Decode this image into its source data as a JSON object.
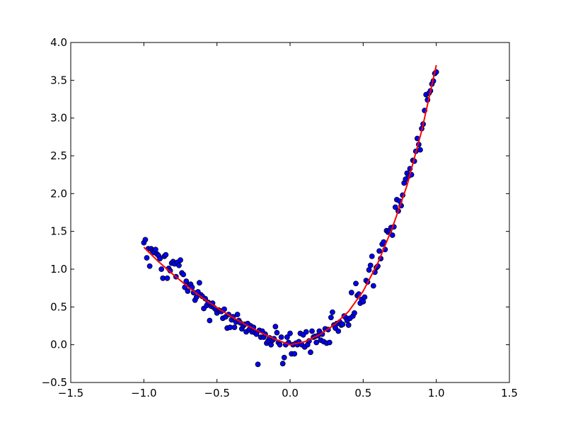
{
  "chart_data": {
    "type": "scatter",
    "title": "",
    "xlabel": "",
    "ylabel": "",
    "xlim": [
      -1.5,
      1.5
    ],
    "ylim": [
      -0.5,
      4.0
    ],
    "x_ticks": [
      -1.5,
      -1.0,
      -0.5,
      0.0,
      0.5,
      1.0,
      1.5
    ],
    "x_tick_labels": [
      "−1.5",
      "−1.0",
      "−0.5",
      "0.0",
      "0.5",
      "1.0",
      "1.5"
    ],
    "y_ticks": [
      -0.5,
      0.0,
      0.5,
      1.0,
      1.5,
      2.0,
      2.5,
      3.0,
      3.5,
      4.0
    ],
    "y_tick_labels": [
      "−0.5",
      "0.0",
      "0.5",
      "1.0",
      "1.5",
      "2.0",
      "2.5",
      "3.0",
      "3.5",
      "4.0"
    ],
    "grid": false,
    "legend": false,
    "series": [
      {
        "kind": "scatter",
        "marker": "circle",
        "color": "#0000ff",
        "edgecolor": "#000000",
        "points": [
          [
            -1.0,
            1.35
          ],
          [
            -0.99,
            1.39
          ],
          [
            -0.98,
            1.15
          ],
          [
            -0.97,
            1.27
          ],
          [
            -0.96,
            1.04
          ],
          [
            -0.95,
            1.27
          ],
          [
            -0.94,
            1.24
          ],
          [
            -0.93,
            1.22
          ],
          [
            -0.92,
            1.26
          ],
          [
            -0.91,
            1.2
          ],
          [
            -0.9,
            1.18
          ],
          [
            -0.89,
            1.14
          ],
          [
            -0.88,
            1.0
          ],
          [
            -0.87,
            0.88
          ],
          [
            -0.86,
            1.17
          ],
          [
            -0.85,
            1.19
          ],
          [
            -0.84,
            0.88
          ],
          [
            -0.83,
            1.01
          ],
          [
            -0.82,
            0.98
          ],
          [
            -0.81,
            1.08
          ],
          [
            -0.8,
            1.1
          ],
          [
            -0.79,
            1.07
          ],
          [
            -0.78,
            0.9
          ],
          [
            -0.77,
            1.09
          ],
          [
            -0.76,
            1.05
          ],
          [
            -0.75,
            1.12
          ],
          [
            -0.74,
            0.95
          ],
          [
            -0.73,
            0.93
          ],
          [
            -0.72,
            0.76
          ],
          [
            -0.71,
            0.84
          ],
          [
            -0.7,
            0.71
          ],
          [
            -0.69,
            0.79
          ],
          [
            -0.68,
            0.8
          ],
          [
            -0.67,
            0.76
          ],
          [
            -0.66,
            0.69
          ],
          [
            -0.65,
            0.59
          ],
          [
            -0.64,
            0.63
          ],
          [
            -0.63,
            0.7
          ],
          [
            -0.62,
            0.82
          ],
          [
            -0.61,
            0.66
          ],
          [
            -0.6,
            0.64
          ],
          [
            -0.59,
            0.48
          ],
          [
            -0.58,
            0.61
          ],
          [
            -0.57,
            0.52
          ],
          [
            -0.56,
            0.56
          ],
          [
            -0.55,
            0.32
          ],
          [
            -0.54,
            0.51
          ],
          [
            -0.53,
            0.55
          ],
          [
            -0.52,
            0.49
          ],
          [
            -0.51,
            0.47
          ],
          [
            -0.5,
            0.42
          ],
          [
            -0.49,
            0.46
          ],
          [
            -0.48,
            0.45
          ],
          [
            -0.47,
            0.44
          ],
          [
            -0.46,
            0.35
          ],
          [
            -0.45,
            0.47
          ],
          [
            -0.44,
            0.37
          ],
          [
            -0.43,
            0.22
          ],
          [
            -0.42,
            0.4
          ],
          [
            -0.41,
            0.23
          ],
          [
            -0.4,
            0.33
          ],
          [
            -0.39,
            0.37
          ],
          [
            -0.38,
            0.23
          ],
          [
            -0.37,
            0.3
          ],
          [
            -0.36,
            0.4
          ],
          [
            -0.35,
            0.32
          ],
          [
            -0.34,
            0.29
          ],
          [
            -0.33,
            0.21
          ],
          [
            -0.32,
            0.25
          ],
          [
            -0.31,
            0.27
          ],
          [
            -0.3,
            0.17
          ],
          [
            -0.29,
            0.28
          ],
          [
            -0.28,
            0.2
          ],
          [
            -0.27,
            0.25
          ],
          [
            -0.26,
            0.17
          ],
          [
            -0.25,
            0.23
          ],
          [
            -0.24,
            0.16
          ],
          [
            -0.23,
            0.14
          ],
          [
            -0.22,
            -0.26
          ],
          [
            -0.21,
            0.19
          ],
          [
            -0.2,
            0.1
          ],
          [
            -0.19,
            0.18
          ],
          [
            -0.18,
            0.1
          ],
          [
            -0.17,
            0.14
          ],
          [
            -0.16,
            0.02
          ],
          [
            -0.15,
            0.05
          ],
          [
            -0.14,
            0.09
          ],
          [
            -0.13,
            0.0
          ],
          [
            -0.12,
            0.06
          ],
          [
            -0.11,
            0.08
          ],
          [
            -0.1,
            0.24
          ],
          [
            -0.09,
            0.16
          ],
          [
            -0.08,
            0.03
          ],
          [
            -0.07,
            0.0
          ],
          [
            -0.06,
            0.1
          ],
          [
            -0.05,
            -0.25
          ],
          [
            -0.04,
            -0.17
          ],
          [
            -0.03,
            0.0
          ],
          [
            -0.02,
            0.1
          ],
          [
            -0.01,
            0.03
          ],
          [
            0.0,
            0.15
          ],
          [
            0.01,
            -0.12
          ],
          [
            0.02,
            0.0
          ],
          [
            0.03,
            -0.12
          ],
          [
            0.04,
            0.02
          ],
          [
            0.05,
            0.0
          ],
          [
            0.06,
            0.04
          ],
          [
            0.07,
            0.15
          ],
          [
            0.08,
            0.0
          ],
          [
            0.09,
            0.13
          ],
          [
            0.1,
            -0.03
          ],
          [
            0.11,
            0.17
          ],
          [
            0.12,
            0.0
          ],
          [
            0.13,
            0.05
          ],
          [
            0.14,
            -0.1
          ],
          [
            0.15,
            0.18
          ],
          [
            0.16,
            0.1
          ],
          [
            0.17,
            0.11
          ],
          [
            0.18,
            0.03
          ],
          [
            0.19,
            0.12
          ],
          [
            0.2,
            0.18
          ],
          [
            0.21,
            0.06
          ],
          [
            0.22,
            0.14
          ],
          [
            0.23,
            0.04
          ],
          [
            0.24,
            0.21
          ],
          [
            0.25,
            0.02
          ],
          [
            0.26,
            0.2
          ],
          [
            0.27,
            0.03
          ],
          [
            0.28,
            0.36
          ],
          [
            0.29,
            0.43
          ],
          [
            0.3,
            0.26
          ],
          [
            0.31,
            0.22
          ],
          [
            0.32,
            0.28
          ],
          [
            0.33,
            0.18
          ],
          [
            0.34,
            0.3
          ],
          [
            0.35,
            0.26
          ],
          [
            0.36,
            0.27
          ],
          [
            0.37,
            0.38
          ],
          [
            0.38,
            0.36
          ],
          [
            0.39,
            0.32
          ],
          [
            0.4,
            0.26
          ],
          [
            0.41,
            0.35
          ],
          [
            0.42,
            0.69
          ],
          [
            0.43,
            0.38
          ],
          [
            0.44,
            0.42
          ],
          [
            0.45,
            0.81
          ],
          [
            0.46,
            0.65
          ],
          [
            0.47,
            0.67
          ],
          [
            0.48,
            0.55
          ],
          [
            0.49,
            0.6
          ],
          [
            0.5,
            0.57
          ],
          [
            0.51,
            0.63
          ],
          [
            0.52,
            0.85
          ],
          [
            0.53,
            0.83
          ],
          [
            0.54,
            0.99
          ],
          [
            0.55,
            1.05
          ],
          [
            0.56,
            1.17
          ],
          [
            0.57,
            0.78
          ],
          [
            0.58,
            0.96
          ],
          [
            0.59,
            1.02
          ],
          [
            0.6,
            1.04
          ],
          [
            0.61,
            1.24
          ],
          [
            0.62,
            1.14
          ],
          [
            0.63,
            1.33
          ],
          [
            0.64,
            1.36
          ],
          [
            0.65,
            1.26
          ],
          [
            0.66,
            1.51
          ],
          [
            0.67,
            1.49
          ],
          [
            0.68,
            1.51
          ],
          [
            0.69,
            1.55
          ],
          [
            0.7,
            1.45
          ],
          [
            0.71,
            1.56
          ],
          [
            0.72,
            1.82
          ],
          [
            0.73,
            1.92
          ],
          [
            0.74,
            1.77
          ],
          [
            0.75,
            1.9
          ],
          [
            0.76,
            1.84
          ],
          [
            0.77,
            1.98
          ],
          [
            0.78,
            2.14
          ],
          [
            0.79,
            2.19
          ],
          [
            0.8,
            2.27
          ],
          [
            0.81,
            2.23
          ],
          [
            0.82,
            2.33
          ],
          [
            0.83,
            2.25
          ],
          [
            0.84,
            2.44
          ],
          [
            0.85,
            2.43
          ],
          [
            0.86,
            2.56
          ],
          [
            0.87,
            2.73
          ],
          [
            0.88,
            2.65
          ],
          [
            0.89,
            2.58
          ],
          [
            0.9,
            2.86
          ],
          [
            0.91,
            2.92
          ],
          [
            0.92,
            3.1
          ],
          [
            0.93,
            3.31
          ],
          [
            0.94,
            3.24
          ],
          [
            0.95,
            3.33
          ],
          [
            0.96,
            3.36
          ],
          [
            0.97,
            3.45
          ],
          [
            0.98,
            3.49
          ],
          [
            0.99,
            3.59
          ],
          [
            1.0,
            3.61
          ]
        ]
      },
      {
        "kind": "line",
        "color": "#ff0000",
        "x": [
          -1.0,
          -0.9,
          -0.8,
          -0.7,
          -0.6,
          -0.5,
          -0.4,
          -0.3,
          -0.2,
          -0.1,
          0.0,
          0.1,
          0.2,
          0.3,
          0.4,
          0.5,
          0.6,
          0.7,
          0.8,
          0.9,
          1.0
        ],
        "y": [
          1.29,
          1.1,
          0.93,
          0.77,
          0.62,
          0.49,
          0.37,
          0.26,
          0.16,
          0.07,
          0.0,
          0.04,
          0.13,
          0.26,
          0.44,
          0.71,
          1.08,
          1.55,
          2.11,
          2.83,
          3.7
        ]
      }
    ]
  }
}
